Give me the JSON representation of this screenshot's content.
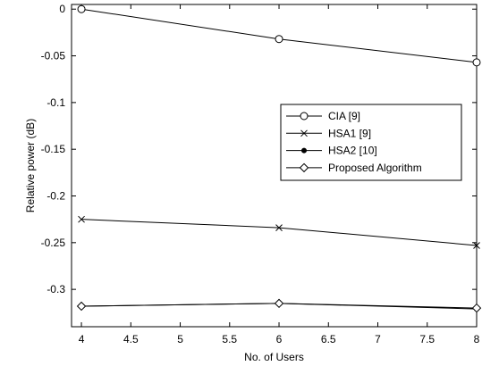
{
  "chart_data": {
    "type": "line",
    "xlabel": "No. of Users",
    "ylabel": "Relative power (dB)",
    "xlim": [
      3.9,
      8
    ],
    "ylim": [
      -0.34,
      0.005
    ],
    "xticks": [
      4,
      4.5,
      5,
      5.5,
      6,
      6.5,
      7,
      7.5,
      8
    ],
    "xtick_labels": [
      "4",
      "4.5",
      "5",
      "5.5",
      "6",
      "6.5",
      "7",
      "7.5",
      "8"
    ],
    "yticks": [
      0,
      -0.05,
      -0.1,
      -0.15,
      -0.2,
      -0.25,
      -0.3
    ],
    "ytick_labels": [
      "0",
      "-0.05",
      "-0.1",
      "-0.15",
      "-0.2",
      "-0.25",
      "-0.3"
    ],
    "grid": false,
    "legend_position": "center-right",
    "series": [
      {
        "name": "CIA [9]",
        "marker": "circle",
        "color": "#000000",
        "x": [
          4,
          6,
          8
        ],
        "y": [
          0,
          -0.032,
          -0.057
        ]
      },
      {
        "name": "HSA1 [9]",
        "marker": "x",
        "color": "#000000",
        "x": [
          4,
          6,
          8
        ],
        "y": [
          -0.225,
          -0.234,
          -0.253
        ]
      },
      {
        "name": "HSA2 [10]",
        "marker": "dot",
        "color": "#000000",
        "x": [
          4,
          6,
          8
        ],
        "y": [
          -0.318,
          -0.315,
          -0.321
        ]
      },
      {
        "name": "Proposed Algorithm",
        "marker": "diamond",
        "color": "#000000",
        "x": [
          4,
          6,
          8
        ],
        "y": [
          -0.318,
          -0.315,
          -0.32
        ]
      }
    ]
  }
}
